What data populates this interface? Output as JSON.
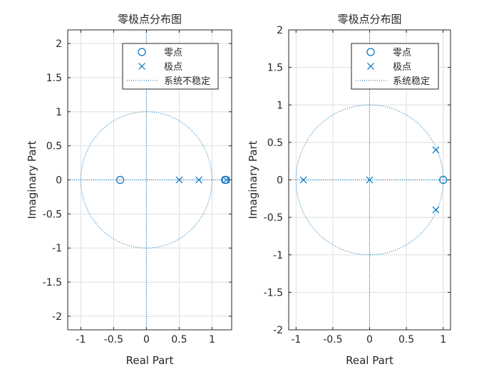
{
  "chart_data": [
    {
      "type": "scatter",
      "title": "零极点分布图",
      "xlabel": "Real Part",
      "ylabel": "Imaginary Part",
      "xlim": [
        -1.2,
        1.3
      ],
      "ylim": [
        -2.2,
        2.2
      ],
      "xticks": [
        -1,
        -0.5,
        0,
        0.5,
        1
      ],
      "yticks": [
        -2,
        -1.5,
        -1,
        -0.5,
        0,
        0.5,
        1,
        1.5,
        2
      ],
      "grid": true,
      "legend_position": "top-right",
      "series": [
        {
          "name": "零点",
          "marker": "circle",
          "points": [
            [
              -0.4,
              0
            ],
            [
              1.2,
              0
            ],
            [
              1.21,
              0
            ]
          ]
        },
        {
          "name": "极点",
          "marker": "x",
          "points": [
            [
              0.5,
              0
            ],
            [
              0.8,
              0
            ],
            [
              1.22,
              0
            ]
          ]
        },
        {
          "name": "系统不稳定",
          "marker": "unit-circle",
          "points": []
        }
      ]
    },
    {
      "type": "scatter",
      "title": "零极点分布图",
      "xlabel": "Real Part",
      "ylabel": "Imaginary Part",
      "xlim": [
        -1.1,
        1.1
      ],
      "ylim": [
        -2,
        2
      ],
      "xticks": [
        -1,
        -0.5,
        0,
        0.5,
        1
      ],
      "yticks": [
        -2,
        -1.5,
        -1,
        -0.5,
        0,
        0.5,
        1,
        1.5,
        2
      ],
      "grid": true,
      "legend_position": "top-right",
      "series": [
        {
          "name": "零点",
          "marker": "circle",
          "points": [
            [
              1,
              0
            ]
          ]
        },
        {
          "name": "极点",
          "marker": "x",
          "points": [
            [
              -0.9,
              0
            ],
            [
              0,
              0
            ],
            [
              0.9,
              0.4
            ],
            [
              0.9,
              -0.4
            ]
          ]
        },
        {
          "name": "系统稳定",
          "marker": "unit-circle",
          "points": []
        }
      ]
    }
  ],
  "colors": {
    "marker": "#0072BD",
    "grid": "#dedede",
    "axis": "#262626"
  }
}
